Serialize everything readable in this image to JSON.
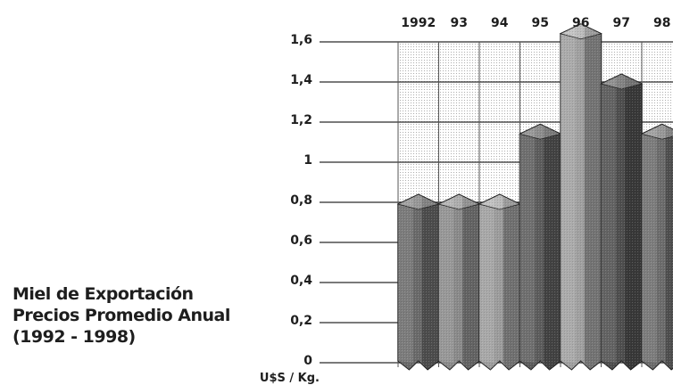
{
  "chart_data": {
    "type": "bar",
    "title_lines": [
      "Miel de Exportación",
      "Precios Promedio Anual",
      "(1992 - 1998)"
    ],
    "ylabel": "U$S / Kg.",
    "categories": [
      "1992",
      "93",
      "94",
      "95",
      "96",
      "97",
      "98"
    ],
    "values": [
      0.8,
      0.8,
      0.8,
      1.15,
      1.65,
      1.4,
      1.15
    ],
    "ylim": [
      0,
      1.6
    ],
    "yticks": [
      "0",
      "0,2",
      "0,4",
      "0,6",
      "0,8",
      "1",
      "1,2",
      "1,4",
      "1,6"
    ],
    "x_axis_position": "top",
    "grid": true,
    "colors": [
      "#6a6a6a",
      "#8a8a8a",
      "#9c9c9c",
      "#5c5c5c",
      "#a0a0a0",
      "#4e4e4e",
      "#6c6c6c"
    ]
  }
}
